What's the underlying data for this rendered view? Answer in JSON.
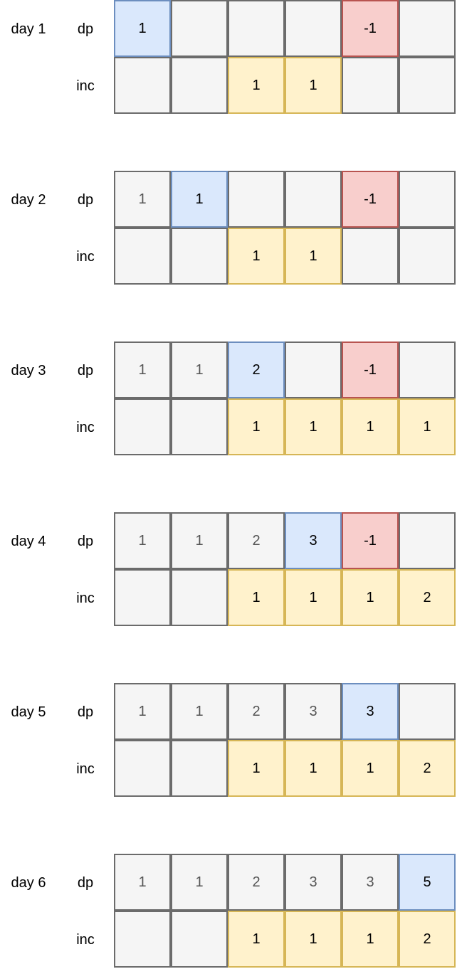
{
  "row_labels": {
    "dp": "dp",
    "inc": "inc"
  },
  "days": [
    {
      "label": "day 1",
      "dp": [
        {
          "v": "1",
          "s": "blue"
        },
        {
          "v": "",
          "s": "plain"
        },
        {
          "v": "",
          "s": "plain"
        },
        {
          "v": "",
          "s": "plain"
        },
        {
          "v": "-1",
          "s": "red"
        },
        {
          "v": "",
          "s": "plain"
        }
      ],
      "inc": [
        {
          "v": "",
          "s": "plain"
        },
        {
          "v": "",
          "s": "plain"
        },
        {
          "v": "1",
          "s": "yellow"
        },
        {
          "v": "1",
          "s": "yellow"
        },
        {
          "v": "",
          "s": "plain"
        },
        {
          "v": "",
          "s": "plain"
        }
      ]
    },
    {
      "label": "day 2",
      "dp": [
        {
          "v": "1",
          "s": "plain"
        },
        {
          "v": "1",
          "s": "blue"
        },
        {
          "v": "",
          "s": "plain"
        },
        {
          "v": "",
          "s": "plain"
        },
        {
          "v": "-1",
          "s": "red"
        },
        {
          "v": "",
          "s": "plain"
        }
      ],
      "inc": [
        {
          "v": "",
          "s": "plain"
        },
        {
          "v": "",
          "s": "plain"
        },
        {
          "v": "1",
          "s": "yellow"
        },
        {
          "v": "1",
          "s": "yellow"
        },
        {
          "v": "",
          "s": "plain"
        },
        {
          "v": "",
          "s": "plain"
        }
      ]
    },
    {
      "label": "day 3",
      "dp": [
        {
          "v": "1",
          "s": "plain"
        },
        {
          "v": "1",
          "s": "plain"
        },
        {
          "v": "2",
          "s": "blue"
        },
        {
          "v": "",
          "s": "plain"
        },
        {
          "v": "-1",
          "s": "red"
        },
        {
          "v": "",
          "s": "plain"
        }
      ],
      "inc": [
        {
          "v": "",
          "s": "plain"
        },
        {
          "v": "",
          "s": "plain"
        },
        {
          "v": "1",
          "s": "yellow"
        },
        {
          "v": "1",
          "s": "yellow"
        },
        {
          "v": "1",
          "s": "yellow"
        },
        {
          "v": "1",
          "s": "yellow"
        }
      ]
    },
    {
      "label": "day 4",
      "dp": [
        {
          "v": "1",
          "s": "plain"
        },
        {
          "v": "1",
          "s": "plain"
        },
        {
          "v": "2",
          "s": "plain"
        },
        {
          "v": "3",
          "s": "blue"
        },
        {
          "v": "-1",
          "s": "red"
        },
        {
          "v": "",
          "s": "plain"
        }
      ],
      "inc": [
        {
          "v": "",
          "s": "plain"
        },
        {
          "v": "",
          "s": "plain"
        },
        {
          "v": "1",
          "s": "yellow"
        },
        {
          "v": "1",
          "s": "yellow"
        },
        {
          "v": "1",
          "s": "yellow"
        },
        {
          "v": "2",
          "s": "yellow"
        }
      ]
    },
    {
      "label": "day 5",
      "dp": [
        {
          "v": "1",
          "s": "plain"
        },
        {
          "v": "1",
          "s": "plain"
        },
        {
          "v": "2",
          "s": "plain"
        },
        {
          "v": "3",
          "s": "plain"
        },
        {
          "v": "3",
          "s": "blue"
        },
        {
          "v": "",
          "s": "plain"
        }
      ],
      "inc": [
        {
          "v": "",
          "s": "plain"
        },
        {
          "v": "",
          "s": "plain"
        },
        {
          "v": "1",
          "s": "yellow"
        },
        {
          "v": "1",
          "s": "yellow"
        },
        {
          "v": "1",
          "s": "yellow"
        },
        {
          "v": "2",
          "s": "yellow"
        }
      ]
    },
    {
      "label": "day 6",
      "dp": [
        {
          "v": "1",
          "s": "plain"
        },
        {
          "v": "1",
          "s": "plain"
        },
        {
          "v": "2",
          "s": "plain"
        },
        {
          "v": "3",
          "s": "plain"
        },
        {
          "v": "3",
          "s": "plain"
        },
        {
          "v": "5",
          "s": "blue"
        }
      ],
      "inc": [
        {
          "v": "",
          "s": "plain"
        },
        {
          "v": "",
          "s": "plain"
        },
        {
          "v": "1",
          "s": "yellow"
        },
        {
          "v": "1",
          "s": "yellow"
        },
        {
          "v": "1",
          "s": "yellow"
        },
        {
          "v": "2",
          "s": "yellow"
        }
      ]
    }
  ],
  "colors": {
    "plain_fill": "#f5f5f5",
    "plain_border": "#6b6b6b",
    "blue_fill": "#dae8fc",
    "blue_border": "#6c8ebf",
    "red_fill": "#f8cecc",
    "red_border": "#b85450",
    "yellow_fill": "#fff2cc",
    "yellow_border": "#d6b656"
  }
}
